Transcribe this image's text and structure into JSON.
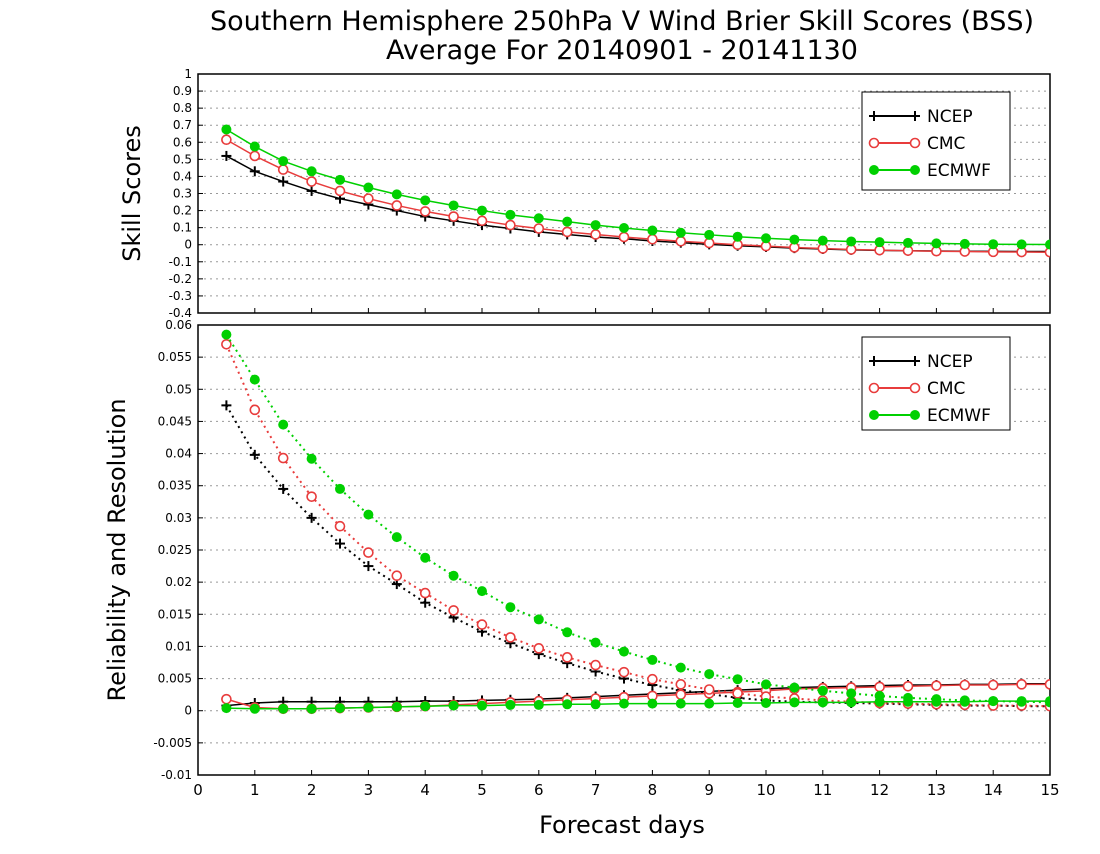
{
  "title_line1": "Southern Hemisphere 250hPa V Wind Brier Skill Scores (BSS)",
  "title_line2": "Average For 20140901 - 20141130",
  "xlabel": "Forecast days",
  "colors": {
    "NCEP": "#000000",
    "CMC": "#e83c3c",
    "ECMWF": "#00d000",
    "grid": "#999999"
  },
  "chart_data": [
    {
      "type": "line",
      "ylabel": "Skill Scores",
      "xlim": [
        0,
        15
      ],
      "ylim": [
        -0.4,
        1
      ],
      "xticks": [
        0,
        1,
        2,
        3,
        4,
        5,
        6,
        7,
        8,
        9,
        10,
        11,
        12,
        13,
        14,
        15
      ],
      "yticks": [
        -0.4,
        -0.3,
        -0.2,
        -0.1,
        0,
        0.1,
        0.2,
        0.3,
        0.4,
        0.5,
        0.6,
        0.7,
        0.8,
        0.9,
        1
      ],
      "ytick_labels": [
        "-0.4",
        "-0.3",
        "-0.2",
        "-0.1",
        "0",
        "0.1",
        "0.2",
        "0.3",
        "0.4",
        "0.5",
        "0.6",
        "0.7",
        "0.8",
        "0.9",
        "1"
      ],
      "grid": true,
      "legend": "top-right",
      "x": [
        0.5,
        1,
        1.5,
        2,
        2.5,
        3,
        3.5,
        4,
        4.5,
        5,
        5.5,
        6,
        6.5,
        7,
        7.5,
        8,
        8.5,
        9,
        9.5,
        10,
        10.5,
        11,
        11.5,
        12,
        12.5,
        13,
        13.5,
        14,
        14.5,
        15
      ],
      "series": [
        {
          "name": "NCEP",
          "marker": "plus",
          "line": "solid",
          "values": [
            0.52,
            0.43,
            0.37,
            0.315,
            0.27,
            0.235,
            0.2,
            0.165,
            0.14,
            0.115,
            0.095,
            0.075,
            0.06,
            0.045,
            0.035,
            0.022,
            0.012,
            0.002,
            -0.006,
            -0.013,
            -0.02,
            -0.025,
            -0.03,
            -0.033,
            -0.035,
            -0.037,
            -0.038,
            -0.039,
            -0.04,
            -0.04
          ]
        },
        {
          "name": "CMC",
          "marker": "open-circle",
          "line": "solid",
          "values": [
            0.615,
            0.52,
            0.44,
            0.37,
            0.315,
            0.27,
            0.23,
            0.195,
            0.165,
            0.14,
            0.115,
            0.095,
            0.075,
            0.06,
            0.045,
            0.032,
            0.02,
            0.01,
            0.0,
            -0.008,
            -0.016,
            -0.022,
            -0.028,
            -0.032,
            -0.035,
            -0.038,
            -0.04,
            -0.042,
            -0.043,
            -0.044
          ]
        },
        {
          "name": "ECMWF",
          "marker": "filled-circle",
          "line": "solid",
          "values": [
            0.675,
            0.575,
            0.49,
            0.43,
            0.38,
            0.335,
            0.295,
            0.26,
            0.23,
            0.2,
            0.175,
            0.155,
            0.135,
            0.115,
            0.098,
            0.083,
            0.07,
            0.058,
            0.047,
            0.038,
            0.03,
            0.024,
            0.019,
            0.015,
            0.011,
            0.008,
            0.005,
            0.003,
            0.002,
            0.001
          ]
        }
      ]
    },
    {
      "type": "line",
      "ylabel": "Reliability and Resolution",
      "xlim": [
        0,
        15
      ],
      "ylim": [
        -0.01,
        0.06
      ],
      "xticks": [
        0,
        1,
        2,
        3,
        4,
        5,
        6,
        7,
        8,
        9,
        10,
        11,
        12,
        13,
        14,
        15
      ],
      "yticks": [
        -0.01,
        -0.005,
        0,
        0.005,
        0.01,
        0.015,
        0.02,
        0.025,
        0.03,
        0.035,
        0.04,
        0.045,
        0.05,
        0.055,
        0.06
      ],
      "ytick_labels": [
        "-0.01",
        "-0.005",
        "0",
        "0.005",
        "0.01",
        "0.015",
        "0.02",
        "0.025",
        "0.03",
        "0.035",
        "0.04",
        "0.045",
        "0.05",
        "0.055",
        "0.06"
      ],
      "grid": true,
      "legend": "top-right",
      "x": [
        0.5,
        1,
        1.5,
        2,
        2.5,
        3,
        3.5,
        4,
        4.5,
        5,
        5.5,
        6,
        6.5,
        7,
        7.5,
        8,
        8.5,
        9,
        9.5,
        10,
        10.5,
        11,
        11.5,
        12,
        12.5,
        13,
        13.5,
        14,
        14.5,
        15
      ],
      "series": [
        {
          "name": "NCEP",
          "marker": "plus",
          "line": "solid",
          "role": "reliability",
          "values": [
            0.0008,
            0.0012,
            0.0014,
            0.0014,
            0.0014,
            0.0014,
            0.0014,
            0.0015,
            0.0015,
            0.0016,
            0.0017,
            0.0018,
            0.002,
            0.0022,
            0.0024,
            0.0026,
            0.0028,
            0.003,
            0.0032,
            0.0034,
            0.0036,
            0.0037,
            0.0038,
            0.0039,
            0.004,
            0.004,
            0.0041,
            0.0041,
            0.0042,
            0.0042
          ]
        },
        {
          "name": "NCEP",
          "marker": "plus",
          "line": "dotted",
          "role": "resolution",
          "values": [
            0.0475,
            0.0398,
            0.0345,
            0.03,
            0.026,
            0.0225,
            0.0197,
            0.0168,
            0.0145,
            0.0123,
            0.0105,
            0.0088,
            0.0074,
            0.0061,
            0.005,
            0.004,
            0.0032,
            0.0026,
            0.002,
            0.0016,
            0.0014,
            0.0013,
            0.0012,
            0.0011,
            0.001,
            0.0009,
            0.0008,
            0.0008,
            0.0007,
            0.0007
          ]
        },
        {
          "name": "CMC",
          "marker": "open-circle",
          "line": "solid",
          "role": "reliability",
          "values": [
            0.0018,
            0.0005,
            0.0003,
            0.0003,
            0.0004,
            0.0005,
            0.0006,
            0.0007,
            0.0009,
            0.0011,
            0.0013,
            0.0015,
            0.0017,
            0.0019,
            0.0021,
            0.0023,
            0.0025,
            0.0027,
            0.0029,
            0.0031,
            0.0034,
            0.0035,
            0.0036,
            0.0037,
            0.0038,
            0.0039,
            0.004,
            0.004,
            0.0041,
            0.0041
          ]
        },
        {
          "name": "CMC",
          "marker": "open-circle",
          "line": "dotted",
          "role": "resolution",
          "values": [
            0.057,
            0.0468,
            0.0393,
            0.0333,
            0.0287,
            0.0246,
            0.021,
            0.0183,
            0.0156,
            0.0134,
            0.0114,
            0.0097,
            0.0083,
            0.0071,
            0.006,
            0.0049,
            0.0041,
            0.0033,
            0.0027,
            0.0022,
            0.0019,
            0.0016,
            0.0014,
            0.0012,
            0.0011,
            0.001,
            0.0009,
            0.0008,
            0.0008,
            0.0007
          ]
        },
        {
          "name": "ECMWF",
          "marker": "filled-circle",
          "line": "solid",
          "role": "reliability",
          "values": [
            0.0004,
            0.0003,
            0.0003,
            0.0003,
            0.0004,
            0.0005,
            0.0006,
            0.0007,
            0.0008,
            0.0008,
            0.0009,
            0.0009,
            0.001,
            0.001,
            0.0011,
            0.0011,
            0.0011,
            0.0011,
            0.0012,
            0.0012,
            0.0013,
            0.0013,
            0.0013,
            0.0014,
            0.0014,
            0.0014,
            0.0014,
            0.0015,
            0.0015,
            0.0015
          ]
        },
        {
          "name": "ECMWF",
          "marker": "filled-circle",
          "line": "dotted",
          "role": "resolution",
          "values": [
            0.0585,
            0.0515,
            0.0445,
            0.0392,
            0.0345,
            0.0305,
            0.027,
            0.0238,
            0.021,
            0.0186,
            0.0161,
            0.0142,
            0.0122,
            0.0106,
            0.0092,
            0.0079,
            0.0067,
            0.0057,
            0.0049,
            0.0041,
            0.0036,
            0.0031,
            0.0027,
            0.0023,
            0.002,
            0.0018,
            0.0016,
            0.0015,
            0.0014,
            0.0013
          ]
        }
      ]
    }
  ]
}
